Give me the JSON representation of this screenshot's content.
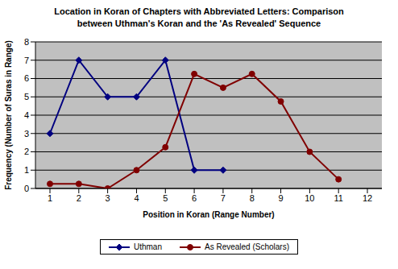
{
  "chart_data": {
    "type": "line",
    "title": "Location in Koran of Chapters with Abbreviated Letters: Comparison between Uthman's Koran and the 'As Revealed' Sequence",
    "x_label": "Position in Koran (Range Number)",
    "y_label": "Frequency (Number of Suras in Range)",
    "categories": [
      1,
      2,
      3,
      4,
      5,
      6,
      7,
      8,
      9,
      10,
      11,
      12
    ],
    "series": [
      {
        "name": "Uthman",
        "color": "#000080",
        "marker": "diamond",
        "values": [
          3,
          7,
          5,
          5,
          7,
          1,
          1,
          null,
          null,
          null,
          null,
          null
        ]
      },
      {
        "name": "As Revealed (Scholars)",
        "color": "#800000",
        "marker": "circle",
        "values": [
          0.25,
          0.25,
          0,
          1,
          2.25,
          6.25,
          5.5,
          6.25,
          4.75,
          2,
          0.5,
          null
        ]
      }
    ],
    "ylim": [
      0,
      8
    ],
    "yticks": [
      0,
      1,
      2,
      3,
      4,
      5,
      6,
      7,
      8
    ],
    "grid": true,
    "legend": "bottom"
  }
}
